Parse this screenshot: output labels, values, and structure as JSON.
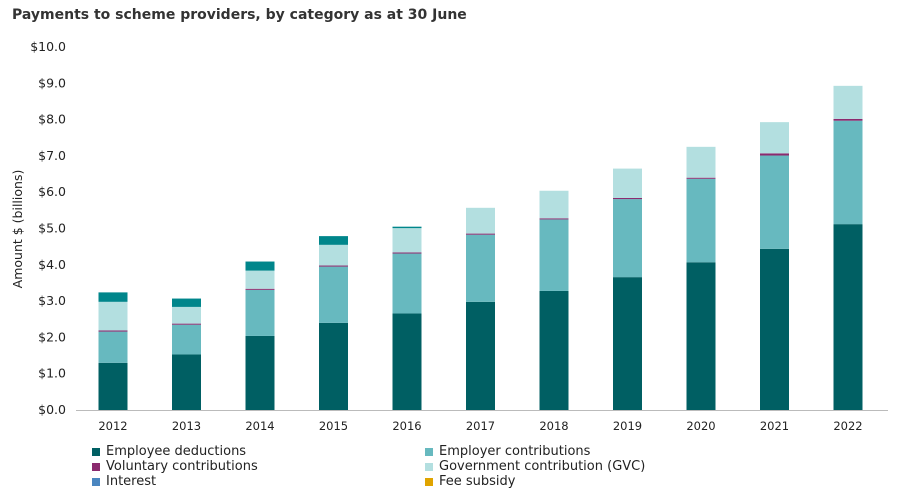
{
  "chart_data": {
    "type": "bar",
    "stacked": true,
    "title": "Payments to scheme providers, by category as at 30 June",
    "xlabel": "",
    "ylabel": "Amount $ (billions)",
    "ylim": [
      0,
      10
    ],
    "yticks": [
      "$0.0",
      "$1.0",
      "$2.0",
      "$3.0",
      "$4.0",
      "$5.0",
      "$6.0",
      "$7.0",
      "$8.0",
      "$9.0",
      "$10.0"
    ],
    "grid": false,
    "legend_position": "bottom",
    "categories": [
      "2012",
      "2013",
      "2014",
      "2015",
      "2016",
      "2017",
      "2018",
      "2019",
      "2020",
      "2021",
      "2022"
    ],
    "series": [
      {
        "name": "Employee deductions",
        "color": "#005f63",
        "values": [
          1.3,
          1.53,
          2.04,
          2.4,
          2.66,
          2.98,
          3.28,
          3.66,
          4.07,
          4.44,
          5.12
        ]
      },
      {
        "name": "Employer contributions",
        "color": "#67b9bf",
        "values": [
          0.86,
          0.82,
          1.27,
          1.55,
          1.65,
          1.85,
          1.97,
          2.15,
          2.3,
          2.57,
          2.85
        ]
      },
      {
        "name": "Voluntary contributions",
        "color": "#8b2a6e",
        "values": [
          0.03,
          0.03,
          0.03,
          0.03,
          0.03,
          0.03,
          0.03,
          0.03,
          0.03,
          0.06,
          0.05
        ]
      },
      {
        "name": "Government contribution (GVC)",
        "color": "#b3dfe0",
        "values": [
          0.79,
          0.46,
          0.5,
          0.57,
          0.67,
          0.71,
          0.76,
          0.81,
          0.85,
          0.86,
          0.91
        ]
      },
      {
        "name": "Interest",
        "color": "#00868b",
        "legend_color": "#4a86c0",
        "values": [
          0.26,
          0.23,
          0.25,
          0.24,
          0.04,
          0,
          0,
          0,
          0,
          0,
          0
        ]
      },
      {
        "name": "Fee subsidy",
        "color": "#e0a400",
        "values": [
          0,
          0,
          0,
          0,
          0,
          0,
          0,
          0,
          0,
          0,
          0
        ]
      }
    ]
  }
}
